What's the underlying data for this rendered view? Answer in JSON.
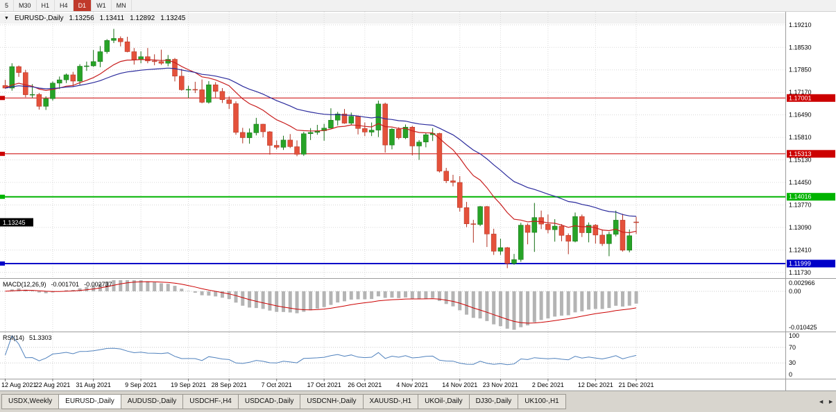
{
  "toolbar": {
    "timeframes": [
      "5",
      "M30",
      "H1",
      "H4",
      "D1",
      "W1",
      "MN"
    ],
    "active_timeframe": "D1"
  },
  "chart_header": {
    "dropdown_icon": "▼",
    "symbol": "EURUSD-,Daily",
    "open": "1.13256",
    "high": "1.13411",
    "low": "1.12892",
    "close": "1.13245"
  },
  "indicator_macd": {
    "name_label": "MACD(12,26,9)",
    "value_main": "-0.001701",
    "value_signal": "-0.002737",
    "axis_max_label": "0.002966",
    "axis_zero_label": "0.00",
    "axis_min_label": "-0.010425"
  },
  "indicator_rsi": {
    "name_label": "RSI(14)",
    "value": "51.3303",
    "axis_labels": [
      "100",
      "70",
      "30",
      "0"
    ]
  },
  "tabs": {
    "items": [
      "USDX,Weekly",
      "EURUSD-,Daily",
      "AUDUSD-,Daily",
      "USDCHF-,H4",
      "USDCAD-,Daily",
      "USDCNH-,Daily",
      "XAUUSD-,H1",
      "UKOil-,Daily",
      "DJ30-,Daily",
      "UK100-,H1"
    ],
    "active_index": 1,
    "scroll_left_icon": "◄",
    "scroll_right_icon": "►"
  },
  "colors": {
    "bull": "#27a327",
    "bull_border": "#157015",
    "bear": "#e4513b",
    "bear_border": "#b03020",
    "macd_hist": "#b4b4b4",
    "macd_signal": "#cc0000",
    "rsi_line": "#4f81bd",
    "grid": "#d8d8d8"
  },
  "chart_data": {
    "type": "candlestick",
    "title": "EURUSD-,Daily",
    "y_axis_ticks": [
      "1.19210",
      "1.18530",
      "1.17850",
      "1.17170",
      "1.16490",
      "1.15810",
      "1.15130",
      "1.14450",
      "1.13770",
      "1.13090",
      "1.12410",
      "1.11730"
    ],
    "y_range_visible": [
      1.116,
      1.195
    ],
    "x_labels": [
      "12 Aug 2021",
      "22 Aug 2021",
      "31 Aug 2021",
      "9 Sep 2021",
      "19 Sep 2021",
      "28 Sep 2021",
      "7 Oct 2021",
      "17 Oct 2021",
      "26 Oct 2021",
      "4 Nov 2021",
      "14 Nov 2021",
      "23 Nov 2021",
      "2 Dec 2021",
      "12 Dec 2021",
      "21 Dec 2021"
    ],
    "x_label_candle_indices": [
      0,
      7,
      13,
      20,
      27,
      33,
      40,
      47,
      53,
      60,
      67,
      73,
      80,
      87,
      93
    ],
    "horizontal_lines": [
      {
        "price": 1.17001,
        "label": "1.17001",
        "color": "#cc0000",
        "width": 1
      },
      {
        "price": 1.15313,
        "label": "1.15313",
        "color": "#cc0000",
        "width": 1
      },
      {
        "price": 1.14016,
        "label": "1.14016",
        "color": "#00b300",
        "width": 2
      },
      {
        "price": 1.11999,
        "label": "1.11999",
        "color": "#0000c8",
        "width": 2
      }
    ],
    "current_price_marker": {
      "price": 1.13245,
      "label": "1.13245"
    },
    "moving_averages": [
      {
        "period": 13,
        "color": "#c81e1e"
      },
      {
        "period": 30,
        "color": "#2a2a9c"
      }
    ],
    "macd": {
      "fast": 12,
      "slow": 26,
      "signal": 9,
      "scale_max": 0.002966,
      "scale_min": -0.010425
    },
    "rsi": {
      "period": 14,
      "levels": [
        70,
        30
      ],
      "scale": [
        0,
        100
      ]
    },
    "ohlc": [
      [
        1.1738,
        1.1755,
        1.1728,
        1.173
      ],
      [
        1.173,
        1.1805,
        1.1722,
        1.1795
      ],
      [
        1.1795,
        1.1798,
        1.1764,
        1.1777
      ],
      [
        1.1777,
        1.1785,
        1.1702,
        1.171
      ],
      [
        1.171,
        1.1742,
        1.17,
        1.1711
      ],
      [
        1.1711,
        1.1715,
        1.1665,
        1.1675
      ],
      [
        1.1675,
        1.1705,
        1.1664,
        1.1698
      ],
      [
        1.1698,
        1.175,
        1.1692,
        1.1745
      ],
      [
        1.1745,
        1.1765,
        1.1727,
        1.1755
      ],
      [
        1.1755,
        1.1774,
        1.1745,
        1.177
      ],
      [
        1.177,
        1.1779,
        1.1735,
        1.1751
      ],
      [
        1.1751,
        1.1802,
        1.174,
        1.1796
      ],
      [
        1.1796,
        1.181,
        1.1782,
        1.1797
      ],
      [
        1.1797,
        1.1845,
        1.1794,
        1.181
      ],
      [
        1.181,
        1.1857,
        1.1793,
        1.184
      ],
      [
        1.184,
        1.1878,
        1.1834,
        1.1874
      ],
      [
        1.1874,
        1.1909,
        1.1866,
        1.188
      ],
      [
        1.188,
        1.1886,
        1.1856,
        1.187
      ],
      [
        1.187,
        1.1885,
        1.1838,
        1.184
      ],
      [
        1.184,
        1.1851,
        1.1801,
        1.1816
      ],
      [
        1.1816,
        1.1841,
        1.1805,
        1.1825
      ],
      [
        1.1825,
        1.1851,
        1.1805,
        1.1812
      ],
      [
        1.1812,
        1.1832,
        1.1799,
        1.181
      ],
      [
        1.181,
        1.1846,
        1.18,
        1.1805
      ],
      [
        1.1805,
        1.183,
        1.1796,
        1.1817
      ],
      [
        1.1817,
        1.1821,
        1.175,
        1.1766
      ],
      [
        1.1766,
        1.1788,
        1.1722,
        1.1725
      ],
      [
        1.1725,
        1.1737,
        1.17,
        1.1726
      ],
      [
        1.1726,
        1.1749,
        1.1715,
        1.1725
      ],
      [
        1.1725,
        1.1756,
        1.1684,
        1.1687
      ],
      [
        1.1687,
        1.1751,
        1.1683,
        1.174
      ],
      [
        1.174,
        1.1748,
        1.1701,
        1.172
      ],
      [
        1.172,
        1.173,
        1.1685,
        1.1695
      ],
      [
        1.1695,
        1.1705,
        1.1667,
        1.1683
      ],
      [
        1.1683,
        1.169,
        1.1589,
        1.1596
      ],
      [
        1.1596,
        1.161,
        1.1563,
        1.158
      ],
      [
        1.158,
        1.1608,
        1.1562,
        1.1595
      ],
      [
        1.1595,
        1.164,
        1.1587,
        1.1621
      ],
      [
        1.1621,
        1.1622,
        1.1581,
        1.1598
      ],
      [
        1.1598,
        1.16,
        1.1529,
        1.1557
      ],
      [
        1.1557,
        1.1572,
        1.1545,
        1.1551
      ],
      [
        1.1551,
        1.1586,
        1.1543,
        1.1573
      ],
      [
        1.1573,
        1.1591,
        1.1549,
        1.1553
      ],
      [
        1.1553,
        1.1572,
        1.1524,
        1.153
      ],
      [
        1.153,
        1.1598,
        1.1525,
        1.1592
      ],
      [
        1.1592,
        1.1609,
        1.1573,
        1.1596
      ],
      [
        1.1596,
        1.1619,
        1.1589,
        1.1601
      ],
      [
        1.1601,
        1.1622,
        1.1571,
        1.1609
      ],
      [
        1.1609,
        1.1669,
        1.1609,
        1.1633
      ],
      [
        1.1633,
        1.1658,
        1.1617,
        1.1652
      ],
      [
        1.1652,
        1.1667,
        1.1622,
        1.1624
      ],
      [
        1.1624,
        1.1656,
        1.162,
        1.1645
      ],
      [
        1.1645,
        1.1647,
        1.159,
        1.1608
      ],
      [
        1.1608,
        1.1626,
        1.1585,
        1.1597
      ],
      [
        1.1597,
        1.1626,
        1.1585,
        1.1603
      ],
      [
        1.1603,
        1.1692,
        1.1582,
        1.1682
      ],
      [
        1.1682,
        1.1686,
        1.1535,
        1.1558
      ],
      [
        1.1558,
        1.1609,
        1.1545,
        1.1606
      ],
      [
        1.1606,
        1.1612,
        1.1575,
        1.158
      ],
      [
        1.158,
        1.162,
        1.1576,
        1.1612
      ],
      [
        1.1612,
        1.1616,
        1.1527,
        1.1555
      ],
      [
        1.1555,
        1.1573,
        1.1513,
        1.1567
      ],
      [
        1.1567,
        1.1595,
        1.1551,
        1.1589
      ],
      [
        1.1589,
        1.1609,
        1.157,
        1.1593
      ],
      [
        1.1593,
        1.1595,
        1.1475,
        1.1479
      ],
      [
        1.1479,
        1.1489,
        1.1443,
        1.145
      ],
      [
        1.145,
        1.1468,
        1.1433,
        1.1445
      ],
      [
        1.1445,
        1.1464,
        1.1357,
        1.1369
      ],
      [
        1.1369,
        1.1386,
        1.131,
        1.132
      ],
      [
        1.132,
        1.1332,
        1.1263,
        1.1318
      ],
      [
        1.1318,
        1.1374,
        1.1313,
        1.1372
      ],
      [
        1.1372,
        1.1374,
        1.125,
        1.1289
      ],
      [
        1.1289,
        1.1305,
        1.1226,
        1.1237
      ],
      [
        1.1237,
        1.1275,
        1.1226,
        1.1248
      ],
      [
        1.1248,
        1.125,
        1.1186,
        1.12
      ],
      [
        1.12,
        1.1229,
        1.1196,
        1.1212
      ],
      [
        1.1212,
        1.1323,
        1.1205,
        1.1316
      ],
      [
        1.1316,
        1.1321,
        1.1258,
        1.1294
      ],
      [
        1.1294,
        1.1383,
        1.1235,
        1.1339
      ],
      [
        1.1339,
        1.136,
        1.1304,
        1.1319
      ],
      [
        1.1319,
        1.1348,
        1.1291,
        1.1302
      ],
      [
        1.1302,
        1.1334,
        1.1266,
        1.1313
      ],
      [
        1.1313,
        1.1319,
        1.1267,
        1.1285
      ],
      [
        1.1285,
        1.1291,
        1.1228,
        1.1267
      ],
      [
        1.1267,
        1.1354,
        1.1264,
        1.1342
      ],
      [
        1.1342,
        1.1348,
        1.128,
        1.1293
      ],
      [
        1.1293,
        1.1324,
        1.1264,
        1.1316
      ],
      [
        1.1316,
        1.1319,
        1.126,
        1.1286
      ],
      [
        1.1286,
        1.1303,
        1.1253,
        1.126
      ],
      [
        1.126,
        1.1296,
        1.1222,
        1.1288
      ],
      [
        1.1288,
        1.136,
        1.1282,
        1.1331
      ],
      [
        1.1331,
        1.135,
        1.1236,
        1.124
      ],
      [
        1.124,
        1.1303,
        1.1234,
        1.1284
      ],
      [
        1.13256,
        1.13411,
        1.12892,
        1.13245
      ]
    ]
  }
}
